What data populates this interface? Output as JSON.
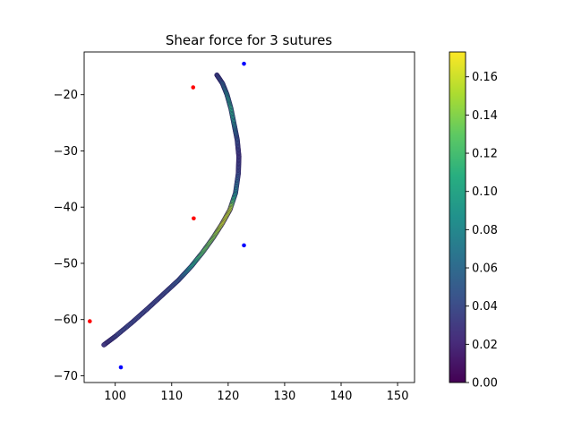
{
  "chart_data": {
    "type": "scatter",
    "title": "Shear force for 3 sutures",
    "xlabel": "",
    "ylabel": "",
    "xlim": [
      94.5,
      153.0
    ],
    "ylim": [
      -71.2,
      -12.4
    ],
    "x_ticks": [
      100,
      110,
      120,
      130,
      140,
      150
    ],
    "y_ticks": [
      -70,
      -60,
      -50,
      -40,
      -30,
      -20
    ],
    "x_tick_labels": [
      "100",
      "110",
      "120",
      "130",
      "140",
      "150"
    ],
    "y_tick_labels": [
      "−70",
      "−60",
      "−50",
      "−40",
      "−30",
      "−20"
    ],
    "grid": false,
    "colormap": "viridis",
    "colorbar": {
      "range": [
        0.0,
        0.173
      ],
      "ticks": [
        0.0,
        0.02,
        0.04,
        0.06,
        0.08,
        0.1,
        0.12,
        0.14,
        0.16
      ],
      "tick_labels": [
        "0.00",
        "0.02",
        "0.04",
        "0.06",
        "0.08",
        "0.10",
        "0.12",
        "0.14",
        "0.16"
      ]
    },
    "wound_curve": {
      "points": [
        [
          118.0,
          -16.5,
          0.04
        ],
        [
          119.0,
          -18.0,
          0.06
        ],
        [
          119.8,
          -20.0,
          0.09
        ],
        [
          120.5,
          -22.5,
          0.11
        ],
        [
          121.1,
          -25.5,
          0.09
        ],
        [
          121.6,
          -28.0,
          0.05
        ],
        [
          121.9,
          -31.0,
          0.03
        ],
        [
          121.8,
          -34.0,
          0.04
        ],
        [
          121.3,
          -37.5,
          0.08
        ],
        [
          120.3,
          -40.5,
          0.155
        ],
        [
          118.9,
          -43.0,
          0.16
        ],
        [
          117.3,
          -45.5,
          0.14
        ],
        [
          115.5,
          -48.0,
          0.13
        ],
        [
          113.5,
          -50.5,
          0.1
        ],
        [
          111.2,
          -53.0,
          0.05
        ],
        [
          108.5,
          -55.5,
          0.04
        ],
        [
          105.8,
          -58.0,
          0.04
        ],
        [
          103.0,
          -60.5,
          0.04
        ],
        [
          100.0,
          -63.0,
          0.04
        ],
        [
          98.0,
          -64.5,
          0.03
        ]
      ]
    },
    "insertion_points": {
      "color": "#ff0000",
      "points": [
        [
          113.8,
          -18.7
        ],
        [
          113.9,
          -42.0
        ],
        [
          95.5,
          -60.3
        ]
      ]
    },
    "extraction_points": {
      "color": "#0000ff",
      "points": [
        [
          122.8,
          -14.5
        ],
        [
          122.8,
          -46.8
        ],
        [
          101.0,
          -68.5
        ]
      ]
    }
  }
}
